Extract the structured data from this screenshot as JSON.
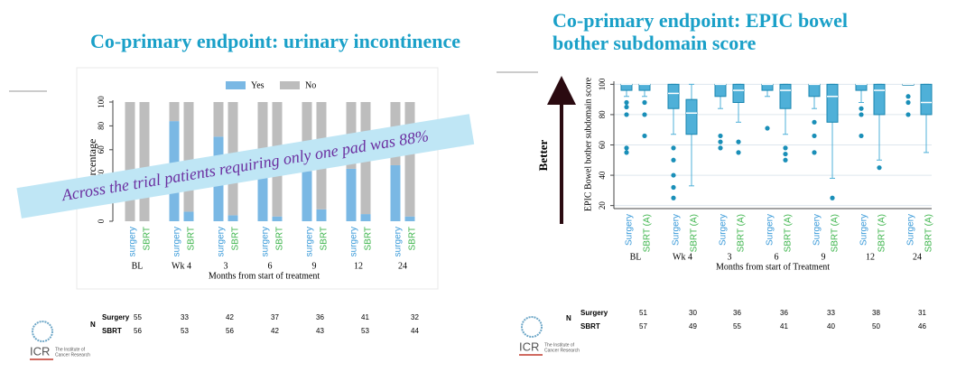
{
  "chart_data": [
    {
      "type": "stacked-bar",
      "title": "Co-primary endpoint: urinary incontinence",
      "annotation": "Across the trial patients requiring only one pad was 88%",
      "categories": [
        "surgery",
        "SBRT",
        "surgery",
        "SBRT",
        "surgery",
        "SBRT",
        "surgery",
        "SBRT",
        "surgery",
        "SBRT",
        "surgery",
        "SBRT",
        "surgery",
        "SBRT"
      ],
      "category_colors": [
        "#3a9ad9",
        "#3cb44b"
      ],
      "groups": [
        "BL",
        "Wk 4",
        "3",
        "6",
        "9",
        "12",
        "24"
      ],
      "series": [
        {
          "name": "Yes",
          "color": "#7ab8e4",
          "values": [
            0,
            0,
            84,
            8,
            71,
            5,
            40,
            4,
            42,
            10,
            44,
            6,
            47,
            4
          ]
        },
        {
          "name": "No",
          "color": "#bdbdbd",
          "values": [
            100,
            100,
            16,
            92,
            29,
            95,
            60,
            96,
            58,
            90,
            56,
            94,
            53,
            96
          ]
        }
      ],
      "ylim": [
        0,
        100
      ],
      "yticks": [
        0,
        20,
        40,
        60,
        80,
        100
      ],
      "ylabel": "Percentage",
      "xlabel": "Months from start of treatment",
      "legend": "top"
    },
    {
      "type": "box",
      "title": "Co-primary endpoint: EPIC bowel bother subdomain score",
      "annotation": "Better",
      "categories": [
        "Surgery",
        "SBRT (A)",
        "Surgery",
        "SBRT (A)",
        "Surgery",
        "SBRT (A)",
        "Surgery",
        "SBRT (A)",
        "Surgery",
        "SBRT (A)",
        "Surgery",
        "SBRT (A)",
        "Surgery",
        "SBRT (A)"
      ],
      "category_colors": [
        "#3a9ad9",
        "#3cb44b"
      ],
      "groups": [
        "BL",
        "Wk 4",
        "3",
        "6",
        "9",
        "12",
        "24"
      ],
      "color": "#4fb0d8",
      "boxes": [
        {
          "low": 92,
          "q1": 96,
          "median": 100,
          "q3": 100,
          "high": 100,
          "outliers": [
            88,
            85,
            80,
            58,
            55
          ]
        },
        {
          "low": 92,
          "q1": 96,
          "median": 100,
          "q3": 100,
          "high": 100,
          "outliers": [
            88,
            80,
            66
          ]
        },
        {
          "low": 67,
          "q1": 84,
          "median": 94,
          "q3": 100,
          "high": 100,
          "outliers": [
            58,
            50,
            40,
            32,
            25
          ]
        },
        {
          "low": 33,
          "q1": 67,
          "median": 81,
          "q3": 90,
          "high": 100,
          "outliers": []
        },
        {
          "low": 84,
          "q1": 92,
          "median": 100,
          "q3": 100,
          "high": 100,
          "outliers": [
            66,
            62,
            58
          ]
        },
        {
          "low": 75,
          "q1": 88,
          "median": 96,
          "q3": 100,
          "high": 100,
          "outliers": [
            62,
            55
          ]
        },
        {
          "low": 92,
          "q1": 96,
          "median": 100,
          "q3": 100,
          "high": 100,
          "outliers": [
            71
          ]
        },
        {
          "low": 67,
          "q1": 84,
          "median": 96,
          "q3": 100,
          "high": 100,
          "outliers": [
            58,
            54,
            50
          ]
        },
        {
          "low": 84,
          "q1": 92,
          "median": 100,
          "q3": 100,
          "high": 100,
          "outliers": [
            75,
            66,
            55
          ]
        },
        {
          "low": 38,
          "q1": 75,
          "median": 92,
          "q3": 100,
          "high": 100,
          "outliers": [
            25
          ]
        },
        {
          "low": 88,
          "q1": 96,
          "median": 100,
          "q3": 100,
          "high": 100,
          "outliers": [
            84,
            80,
            66
          ]
        },
        {
          "low": 50,
          "q1": 80,
          "median": 96,
          "q3": 100,
          "high": 100,
          "outliers": [
            45
          ]
        },
        {
          "low": 100,
          "q1": 100,
          "median": 100,
          "q3": 100,
          "high": 100,
          "outliers": [
            92,
            88,
            80
          ]
        },
        {
          "low": 55,
          "q1": 80,
          "median": 88,
          "q3": 100,
          "high": 100,
          "outliers": []
        }
      ],
      "ylim": [
        18,
        102
      ],
      "yticks": [
        20,
        40,
        60,
        80,
        100
      ],
      "ylabel": "EPIC Bowel bother subdomain score",
      "xlabel": "Months from start of Treatment"
    }
  ],
  "tables": [
    {
      "label": "N",
      "rows": [
        {
          "name": "Surgery",
          "values": [
            55,
            33,
            42,
            37,
            36,
            41,
            32
          ]
        },
        {
          "name": "SBRT",
          "values": [
            56,
            53,
            56,
            42,
            43,
            53,
            44
          ]
        }
      ]
    },
    {
      "label": "N",
      "rows": [
        {
          "name": "Surgery",
          "values": [
            51,
            30,
            36,
            36,
            33,
            38,
            31
          ]
        },
        {
          "name": "SBRT",
          "values": [
            57,
            49,
            55,
            41,
            40,
            50,
            46
          ]
        }
      ]
    }
  ],
  "logo": {
    "abbr": "ICR",
    "line1": "The Institute of",
    "line2": "Cancer Research"
  }
}
